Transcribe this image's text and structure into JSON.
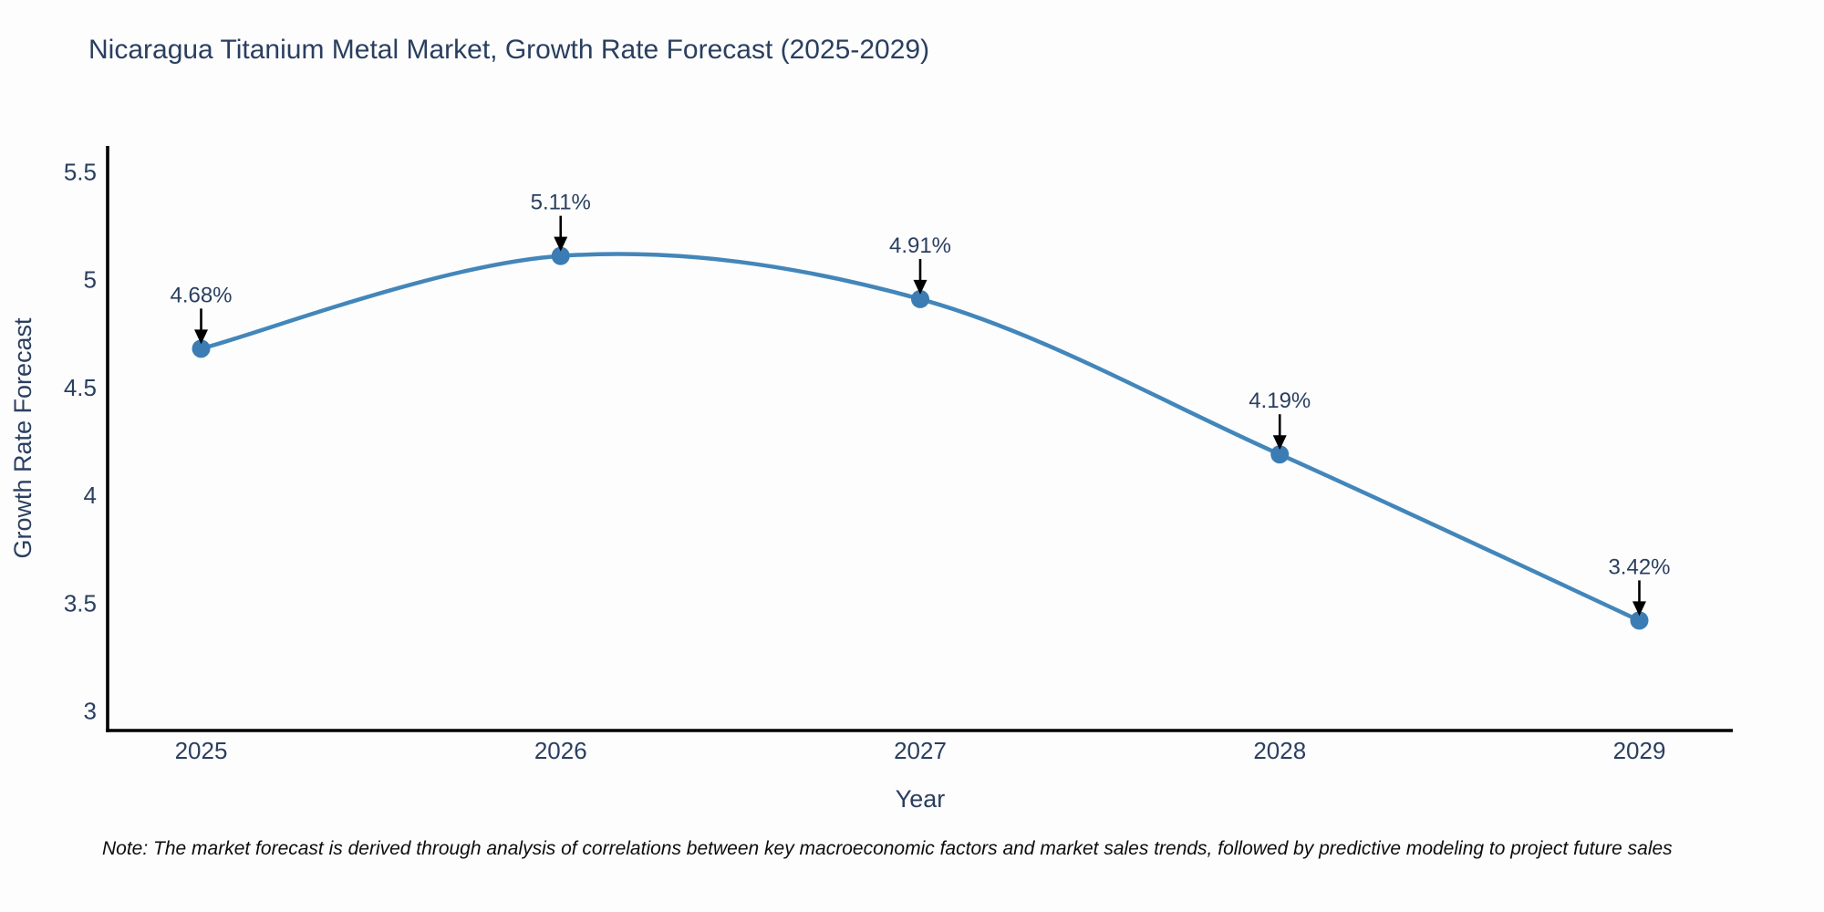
{
  "note": "Note: The market forecast is derived through analysis of correlations between key macroeconomic factors and market sales trends, followed by predictive modeling to project future sales",
  "chart_data": {
    "type": "line",
    "title": "Nicaragua Titanium Metal Market, Growth Rate Forecast (2025-2029)",
    "xlabel": "Year",
    "ylabel": "Growth Rate Forecast",
    "x": [
      2025,
      2026,
      2027,
      2028,
      2029
    ],
    "series": [
      {
        "name": "Growth Rate Forecast",
        "values": [
          4.68,
          5.11,
          4.91,
          4.19,
          3.42
        ]
      }
    ],
    "point_labels": [
      "4.68%",
      "5.11%",
      "4.91%",
      "4.19%",
      "3.42%"
    ],
    "x_ticks": [
      "2025",
      "2026",
      "2027",
      "2028",
      "2029"
    ],
    "y_ticks": [
      "3",
      "3.5",
      "4",
      "4.5",
      "5",
      "5.5"
    ],
    "xlim": [
      2024.74,
      2029.26
    ],
    "ylim": [
      2.91,
      5.62
    ],
    "line_shape": "spline",
    "grid": false,
    "legend_position": "none",
    "annotations_have_arrows": true,
    "colors": {
      "line": "#4386ba",
      "marker": "#3c7cb4",
      "axis": "#000000",
      "tick_text": "#2a3f5f",
      "axis_title_text": "#2a3f5f",
      "annotation_text": "#2a3f5f",
      "arrow": "#000000",
      "background": "#fdfdfe"
    }
  }
}
